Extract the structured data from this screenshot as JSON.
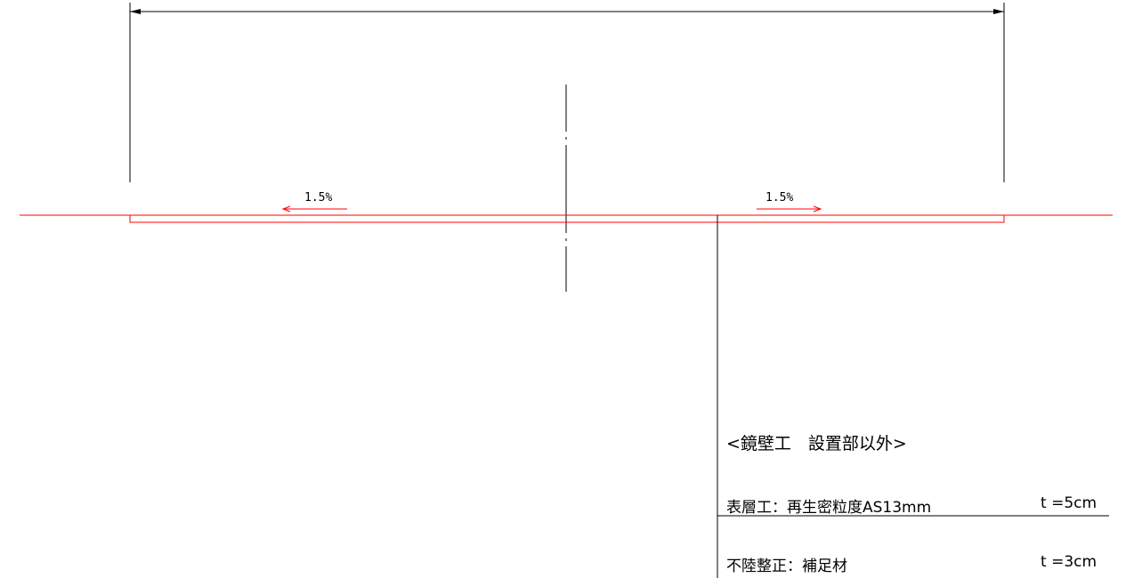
{
  "colors": {
    "dimension_line": "#000000",
    "pavement_line": "#ff0000"
  },
  "slopes": {
    "left": "1.5%",
    "right": "1.5%"
  },
  "notes": {
    "title": "<鏡壁工　設置部以外>",
    "layers": [
      {
        "label": "表層工：再生密粒度AS13mm",
        "thickness": "t =5cm"
      },
      {
        "label": "不陸整正：補足材",
        "thickness": "t =3cm"
      }
    ]
  }
}
